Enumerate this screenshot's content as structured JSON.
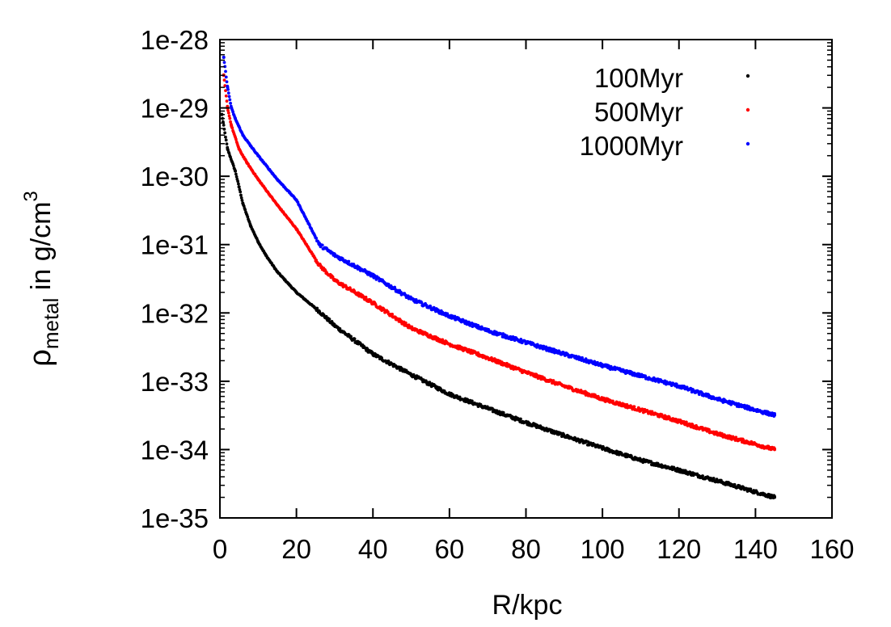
{
  "chart_data": {
    "type": "scatter",
    "title": "",
    "xlabel": "R/kpc",
    "ylabel": {
      "base": "ρ",
      "sub": "metal",
      "mid": " in g/cm",
      "sup": "3"
    },
    "xlim": [
      0,
      160
    ],
    "ylim": [
      1e-35,
      1e-28
    ],
    "yscale": "log",
    "x_ticks": [
      0,
      20,
      40,
      60,
      80,
      100,
      120,
      140,
      160
    ],
    "x_tick_labels": [
      "0",
      "20",
      "40",
      "60",
      "80",
      "100",
      "120",
      "140",
      "160"
    ],
    "y_ticks": [
      1e-35,
      1e-34,
      1e-33,
      1e-32,
      1e-31,
      1e-30,
      1e-29,
      1e-28
    ],
    "y_tick_labels": [
      "1e-35",
      "1e-34",
      "1e-33",
      "1e-32",
      "1e-31",
      "1e-30",
      "1e-29",
      "1e-28"
    ],
    "grid": false,
    "legend_position": "top-right",
    "series": [
      {
        "name": "100Myr",
        "label": "100Myr",
        "color": "#000000",
        "x": [
          0.5,
          2,
          4,
          5,
          6,
          8,
          10,
          12,
          15,
          20,
          26,
          30,
          40,
          50,
          60,
          70,
          80,
          90,
          100,
          110,
          120,
          130,
          140,
          145
        ],
        "y": [
          8e-30,
          2.5e-30,
          1.2e-30,
          7e-31,
          4e-31,
          1.9e-31,
          1.1e-31,
          7e-32,
          4e-32,
          2e-32,
          1.05e-32,
          6.5e-33,
          2.5e-33,
          1.25e-33,
          6.5e-34,
          4e-34,
          2.5e-34,
          1.6e-34,
          1.05e-34,
          7e-35,
          5e-35,
          3.5e-35,
          2.4e-35,
          2e-35
        ]
      },
      {
        "name": "500Myr",
        "label": "500Myr",
        "color": "#ff0000",
        "x": [
          1,
          2,
          3,
          5,
          7,
          10,
          15,
          20,
          26,
          30,
          40,
          50,
          60,
          70,
          80,
          90,
          100,
          110,
          120,
          130,
          140,
          145
        ],
        "y": [
          3e-29,
          1e-29,
          5.5e-30,
          2.5e-30,
          1.6e-30,
          9e-31,
          3.8e-31,
          1.7e-31,
          5e-32,
          3e-32,
          1.4e-32,
          6e-33,
          3.5e-33,
          2.2e-33,
          1.35e-33,
          8.5e-34,
          5.5e-34,
          3.8e-34,
          2.6e-34,
          1.7e-34,
          1.2e-34,
          1e-34
        ]
      },
      {
        "name": "1000Myr",
        "label": "1000Myr",
        "color": "#0000ff",
        "x": [
          1,
          2,
          3,
          4,
          6,
          8,
          10,
          15,
          20,
          26,
          30,
          40,
          50,
          60,
          70,
          80,
          90,
          100,
          110,
          120,
          130,
          140,
          145
        ],
        "y": [
          5.5e-29,
          2e-29,
          1e-29,
          7e-30,
          4e-30,
          2.8e-30,
          2e-30,
          9e-31,
          4.5e-31,
          1e-31,
          7e-32,
          3.5e-32,
          1.6e-32,
          9e-33,
          5.5e-33,
          3.7e-33,
          2.5e-33,
          1.7e-33,
          1.2e-33,
          8.5e-34,
          5.5e-34,
          3.8e-34,
          3.2e-34
        ]
      }
    ]
  }
}
